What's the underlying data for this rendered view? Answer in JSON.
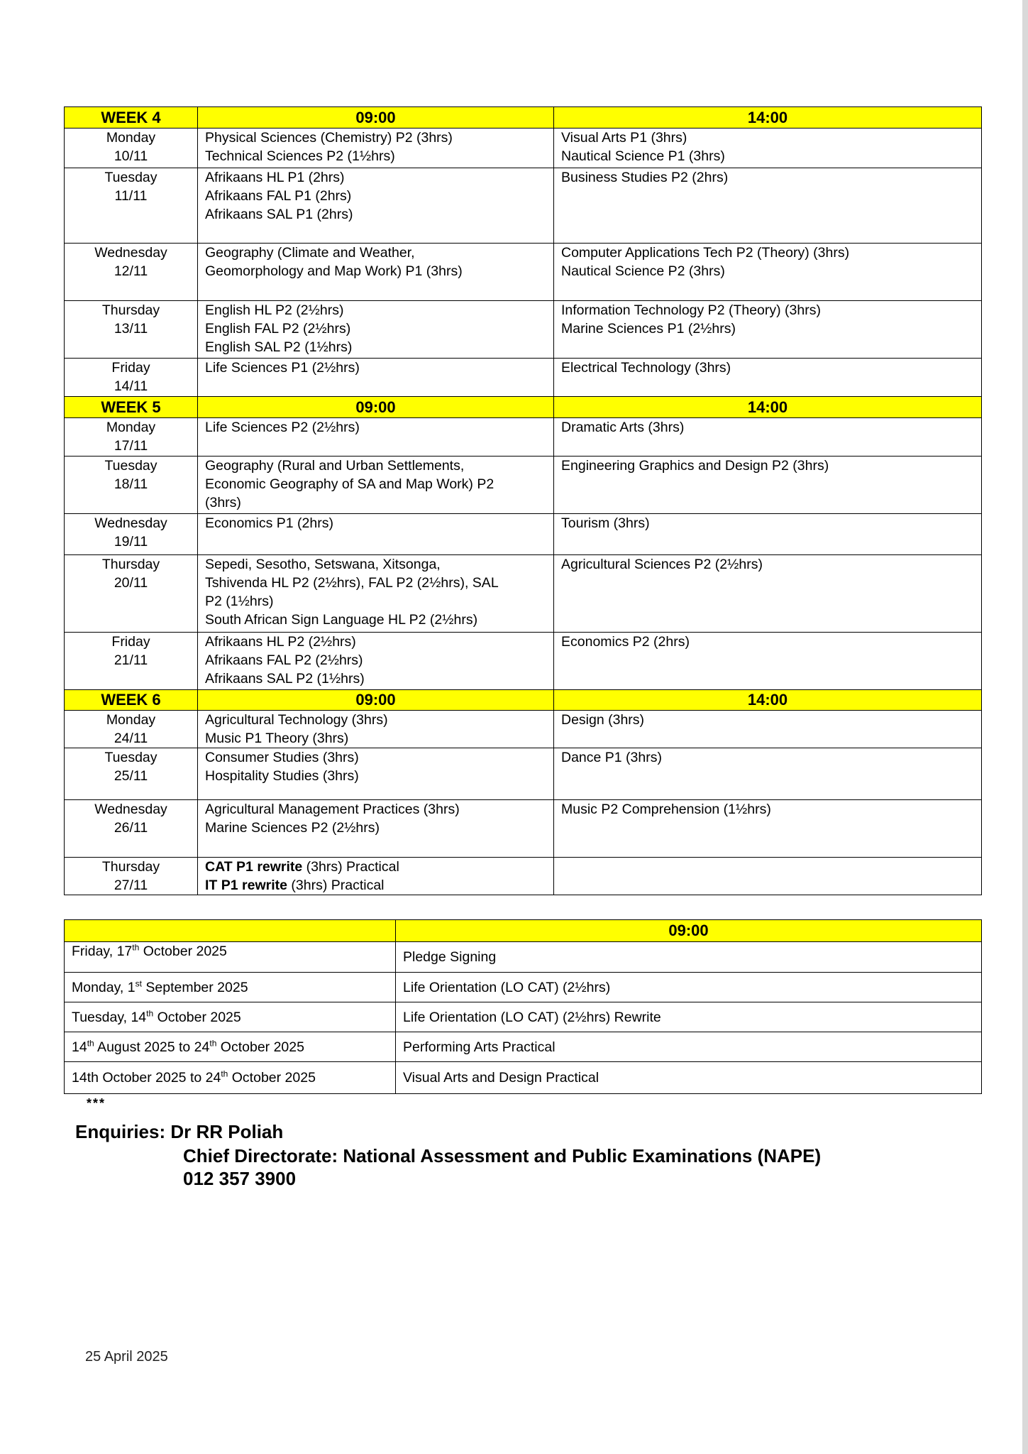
{
  "schedule": [
    {
      "week": "WEEK 4",
      "morning": "09:00",
      "afternoon": "14:00",
      "days": [
        {
          "day": "Monday",
          "date": "10/11",
          "am": [
            "Physical Sciences (Chemistry) P2 (3hrs)",
            "Technical Sciences P2 (1½hrs)"
          ],
          "pm": [
            "Visual Arts P1 (3hrs)",
            "Nautical Science P1 (3hrs)"
          ]
        },
        {
          "day": "Tuesday",
          "date": "11/11",
          "am": [
            "Afrikaans HL P1 (2hrs)",
            "Afrikaans FAL P1 (2hrs)",
            "Afrikaans SAL P1 (2hrs)"
          ],
          "pm": [
            "Business Studies P2 (2hrs)"
          ]
        },
        {
          "day": "Wednesday",
          "date": "12/11",
          "am": [
            "Geography (Climate and Weather,",
            "Geomorphology and Map Work) P1 (3hrs)"
          ],
          "pm": [
            "Computer Applications Tech P2 (Theory) (3hrs)",
            "Nautical Science P2 (3hrs)"
          ]
        },
        {
          "day": "Thursday",
          "date": "13/11",
          "am": [
            "English HL P2 (2½hrs)",
            "English FAL P2 (2½hrs)",
            "English SAL P2 (1½hrs)"
          ],
          "pm": [
            "Information Technology P2 (Theory) (3hrs)",
            "Marine Sciences P1 (2½hrs)"
          ]
        },
        {
          "day": "Friday",
          "date": "14/11",
          "am": [
            "Life Sciences P1 (2½hrs)"
          ],
          "pm": [
            "Electrical Technology (3hrs)"
          ]
        }
      ]
    },
    {
      "week": "WEEK 5",
      "morning": "09:00",
      "afternoon": "14:00",
      "days": [
        {
          "day": "Monday",
          "date": "17/11",
          "am": [
            "Life Sciences P2 (2½hrs)"
          ],
          "pm": [
            "Dramatic Arts (3hrs)"
          ]
        },
        {
          "day": "Tuesday",
          "date": "18/11",
          "am": [
            "Geography (Rural and Urban Settlements,",
            "Economic Geography of SA and Map Work) P2",
            "(3hrs)"
          ],
          "pm": [
            "Engineering Graphics and Design P2 (3hrs)"
          ]
        },
        {
          "day": "Wednesday",
          "date": "19/11",
          "am": [
            "Economics P1 (2hrs)"
          ],
          "pm": [
            "Tourism (3hrs)"
          ]
        },
        {
          "day": "Thursday",
          "date": "20/11",
          "am": [
            "Sepedi, Sesotho, Setswana, Xitsonga,",
            "Tshivenda HL P2 (2½hrs), FAL P2 (2½hrs), SAL",
            "P2 (1½hrs)",
            "South African Sign Language HL P2 (2½hrs)"
          ],
          "pm": [
            "Agricultural Sciences P2 (2½hrs)"
          ]
        },
        {
          "day": "Friday",
          "date": "21/11",
          "am": [
            "Afrikaans HL P2 (2½hrs)",
            "Afrikaans FAL P2 (2½hrs)",
            "Afrikaans SAL P2 (1½hrs)"
          ],
          "pm": [
            "Economics P2 (2hrs)"
          ]
        }
      ]
    },
    {
      "week": "WEEK 6",
      "morning": "09:00",
      "afternoon": "14:00",
      "days": [
        {
          "day": "Monday",
          "date": "24/11",
          "am": [
            "Agricultural Technology (3hrs)",
            "Music P1 Theory (3hrs)"
          ],
          "pm": [
            "Design (3hrs)"
          ]
        },
        {
          "day": "Tuesday",
          "date": "25/11",
          "am": [
            "Consumer Studies (3hrs)",
            "Hospitality Studies (3hrs)"
          ],
          "pm": [
            "Dance P1 (3hrs)"
          ]
        },
        {
          "day": "Wednesday",
          "date": "26/11",
          "am": [
            "Agricultural Management Practices (3hrs)",
            "Marine Sciences P2 (2½hrs)"
          ],
          "pm": [
            "Music P2 Comprehension (1½hrs)"
          ]
        },
        {
          "day": "Thursday",
          "date": "27/11",
          "am": [
            {
              "bold": "CAT P1 rewrite",
              "text": " (3hrs) Practical"
            },
            {
              "bold": "IT P1 rewrite",
              "text": " (3hrs) Practical"
            }
          ],
          "pm": []
        }
      ]
    }
  ],
  "other": {
    "header_time": "09:00",
    "rows": [
      {
        "date": [
          [
            "Friday, 17",
            ""
          ],
          [
            "th",
            "sup"
          ],
          [
            " October 2025",
            ""
          ]
        ],
        "subject": "Pledge Signing"
      },
      {
        "date": [
          [
            "Monday, 1",
            ""
          ],
          [
            "st",
            "sup"
          ],
          [
            " September 2025",
            ""
          ]
        ],
        "subject": "Life Orientation (LO CAT) (2½hrs)"
      },
      {
        "date": [
          [
            "Tuesday, 14",
            ""
          ],
          [
            "th",
            "sup"
          ],
          [
            " October 2025",
            ""
          ]
        ],
        "subject": "Life Orientation (LO CAT) (2½hrs) Rewrite"
      },
      {
        "date": [
          [
            "14",
            ""
          ],
          [
            "th",
            "sup"
          ],
          [
            " August 2025 to 24",
            ""
          ],
          [
            "th",
            "sup"
          ],
          [
            " October 2025",
            ""
          ]
        ],
        "subject": "Performing Arts Practical"
      },
      {
        "date": [
          [
            "14th October 2025 to 24",
            ""
          ],
          [
            "th",
            "sup"
          ],
          [
            " October 2025",
            ""
          ]
        ],
        "subject": "Visual Arts and Design Practical"
      }
    ]
  },
  "footer": {
    "stars": "***",
    "enquiries": "Enquiries: Dr RR Poliah",
    "directorate": "Chief Directorate: National Assessment and Public Examinations (NAPE)",
    "phone": "012 357 3900",
    "date": "25 April 2025"
  },
  "colors": {
    "header_fill": "#ffff00"
  }
}
